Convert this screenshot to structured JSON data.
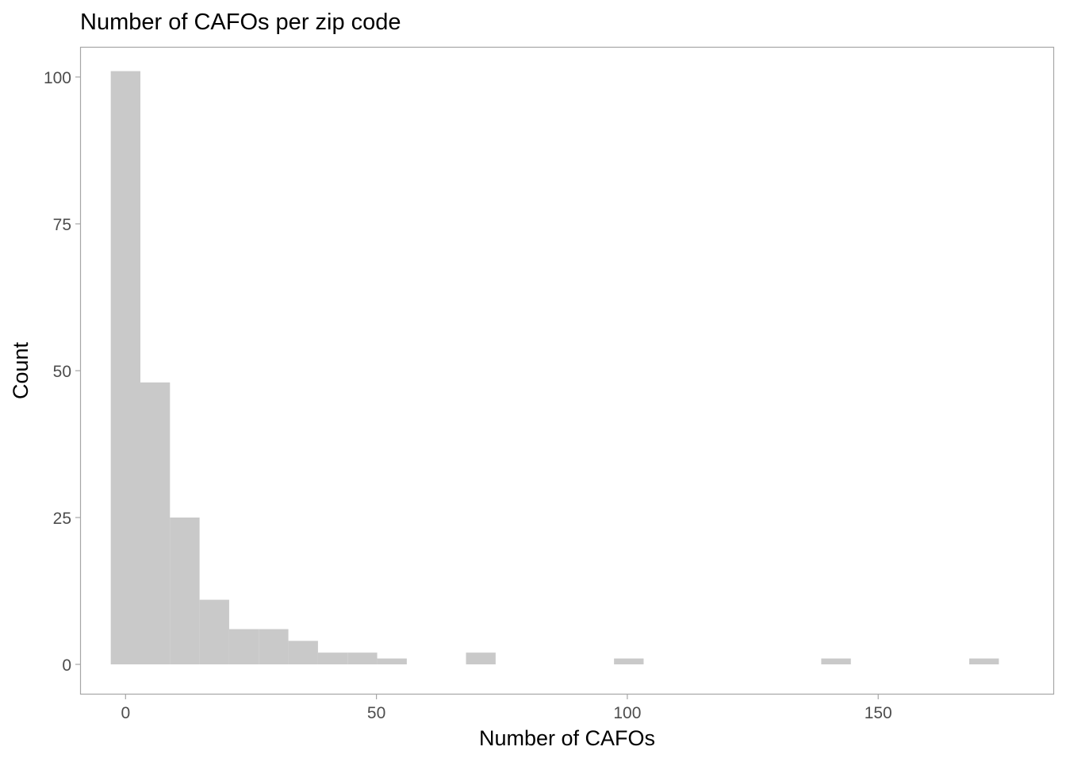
{
  "chart_data": {
    "type": "bar",
    "title": "Number of CAFOs per zip code",
    "xlabel": "Number of CAFOs",
    "ylabel": "Count",
    "xlim": [
      -8.9,
      184.9
    ],
    "ylim": [
      -5,
      105
    ],
    "x_ticks": [
      0,
      50,
      100,
      150
    ],
    "y_ticks": [
      0,
      25,
      50,
      75,
      100
    ],
    "grid": false,
    "bin_width": 5.9,
    "bins": [
      {
        "start": -2.95,
        "end": 2.95,
        "count": 101
      },
      {
        "start": 2.95,
        "end": 8.85,
        "count": 48
      },
      {
        "start": 8.85,
        "end": 14.75,
        "count": 25
      },
      {
        "start": 14.75,
        "end": 20.65,
        "count": 11
      },
      {
        "start": 20.65,
        "end": 26.55,
        "count": 6
      },
      {
        "start": 26.55,
        "end": 32.45,
        "count": 6
      },
      {
        "start": 32.45,
        "end": 38.35,
        "count": 4
      },
      {
        "start": 38.35,
        "end": 44.25,
        "count": 2
      },
      {
        "start": 44.25,
        "end": 50.15,
        "count": 2
      },
      {
        "start": 50.15,
        "end": 56.05,
        "count": 1
      },
      {
        "start": 56.05,
        "end": 61.95,
        "count": 0
      },
      {
        "start": 61.95,
        "end": 67.85,
        "count": 0
      },
      {
        "start": 67.85,
        "end": 73.75,
        "count": 2
      },
      {
        "start": 97.35,
        "end": 103.25,
        "count": 1
      },
      {
        "start": 138.65,
        "end": 144.55,
        "count": 1
      },
      {
        "start": 168.15,
        "end": 174.05,
        "count": 1
      }
    ],
    "colors": {
      "bar_fill": "#c9c9c9",
      "panel_border": "#a6a6a6",
      "tick_mark": "#a6a6a6",
      "tick_text": "#4d4d4d",
      "title": "#000000"
    }
  }
}
